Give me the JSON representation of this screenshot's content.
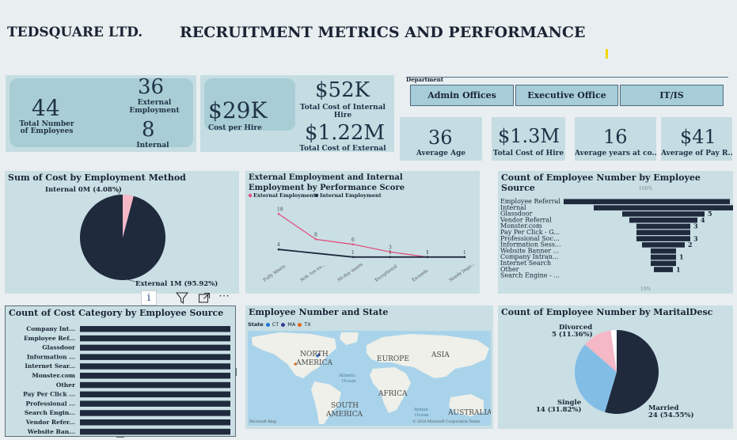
{
  "header": {
    "company": "TEDSQUARE LTD.",
    "title": "RECRUITMENT METRICS AND PERFORMANCE"
  },
  "kpis": {
    "total_employees": {
      "value": "44",
      "label": "Total Number of Employees"
    },
    "external_employment": {
      "value": "36",
      "label": "External Employment"
    },
    "internal_employment": {
      "value": "8",
      "label": "Internal Employment"
    },
    "cost_per_hire": {
      "value": "$29K",
      "label": "Cost per Hire"
    },
    "internal_hire_cost": {
      "value": "$52K",
      "label": "Total Cost of Internal Hire"
    },
    "external_hire_cost": {
      "value": "$1.22M",
      "label": "Total Cost of External Hire"
    },
    "average_age": {
      "value": "36",
      "label": "Average Age"
    },
    "total_cost_of_hire": {
      "value": "$1.3M",
      "label": "Total Cost of Hire"
    },
    "average_years": {
      "value": "16",
      "label": "Average years at co..."
    },
    "average_pay": {
      "value": "$41",
      "label": "Average of Pay R..."
    }
  },
  "slicer": {
    "title": "Department",
    "options": [
      "Admin Offices",
      "Executive Office",
      "IT/IS"
    ]
  },
  "toolbar": {
    "info_glyph": "i",
    "more_glyph": "⋯"
  },
  "colors": {
    "navy": "#1f2a3d",
    "pink": "#f5b8c6",
    "blue": "#82bde6",
    "white": "#ffffff",
    "line_pink": "#e0517f",
    "card_bg": "#c9dfe4"
  },
  "charts": {
    "cost_by_method": {
      "title": "Sum of Cost by Employment Method",
      "label_internal": "Internal 0M (4.08%)",
      "label_external": "External 1M (95.92%)",
      "chart_data": {
        "type": "pie",
        "categories": [
          "Internal",
          "External"
        ],
        "values": [
          4.08,
          95.92
        ]
      }
    },
    "performance": {
      "title": "External Employment and Internal Employment by Performance Score",
      "legend_external": "External Employment",
      "legend_internal": "Internal Employment",
      "chart_data": {
        "type": "line",
        "categories": [
          "Fully Meets",
          "N/A- too ea...",
          "90-day meets",
          "Exceptional",
          "Exceeds",
          "Needs Impr..."
        ],
        "series": [
          {
            "name": "External Employment",
            "values": [
              18,
              8,
              6,
              3,
              1,
              null
            ]
          },
          {
            "name": "Internal Employment",
            "values": [
              4,
              null,
              1,
              1,
              1,
              1
            ]
          }
        ]
      }
    },
    "employee_source": {
      "title": "Count of Employee Number by Employee Source",
      "top_pct": "100%",
      "bottom_pct": "10%",
      "chart_data": {
        "type": "bar",
        "categories": [
          "Employee Referral",
          "Internal",
          "Glassdoor",
          "Vendor Referral",
          "Monster.com",
          "Pay Per Click - G...",
          "Professional Soc...",
          "Information Sess...",
          "Website Banner ...",
          "Company Intran...",
          "Internet Search",
          "Other",
          "Search Engine - ..."
        ],
        "values": [
          null,
          8,
          5,
          4,
          3,
          3,
          3,
          2,
          1,
          1,
          1,
          1,
          null
        ],
        "labels": [
          "",
          "8",
          "5",
          "4",
          "3",
          "",
          "3",
          "2",
          "",
          "1",
          "",
          "1",
          ""
        ]
      }
    },
    "cost_category": {
      "title": "Count of Cost Category by Employee Source",
      "chart_data": {
        "type": "bar",
        "categories": [
          "Company Int...",
          "Employee Ref...",
          "Glassdoor",
          "Information ...",
          "Internet Sear...",
          "Monster.com",
          "Other",
          "Pay Per Click ...",
          "Professional ...",
          "Search Engin...",
          "Vendor Refer...",
          "Website Ban..."
        ],
        "values": [
          1,
          1,
          1,
          1,
          1,
          1,
          1,
          1,
          1,
          1,
          1,
          1
        ]
      }
    },
    "state_map": {
      "title": "Employee Number and State",
      "legend_label": "State",
      "legend_items": [
        {
          "label": "CT",
          "color": "#1f77d4"
        },
        {
          "label": "MA",
          "color": "#3a3d8f"
        },
        {
          "label": "TX",
          "color": "#e0671a"
        }
      ],
      "regions": {
        "north_america_1": "NORTH",
        "north_america_2": "AMERICA",
        "europe": "EUROPE",
        "asia": "ASIA",
        "africa": "AFRICA",
        "south_america_1": "SOUTH",
        "south_america_2": "AMERICA",
        "australia": "AUSTRALIA",
        "atlantic_1": "Atlantic",
        "atlantic_2": "Ocean",
        "indian_1": "Indian",
        "indian_2": "Ocean"
      },
      "attribution": "© 2024 Microsoft Corporation Terms",
      "brand": "Microsoft Bing"
    },
    "marital": {
      "title": "Count of Employee Number by MaritalDesc",
      "label_divorced_1": "Divorced",
      "label_divorced_2": "5 (11.36%)",
      "label_single_1": "Single",
      "label_single_2": "14 (31.82%)",
      "label_married_1": "Married",
      "label_married_2": "24 (54.55%)",
      "chart_data": {
        "type": "pie",
        "categories": [
          "Married",
          "Single",
          "Divorced",
          "Other"
        ],
        "values": [
          24,
          14,
          5,
          1
        ]
      }
    }
  }
}
